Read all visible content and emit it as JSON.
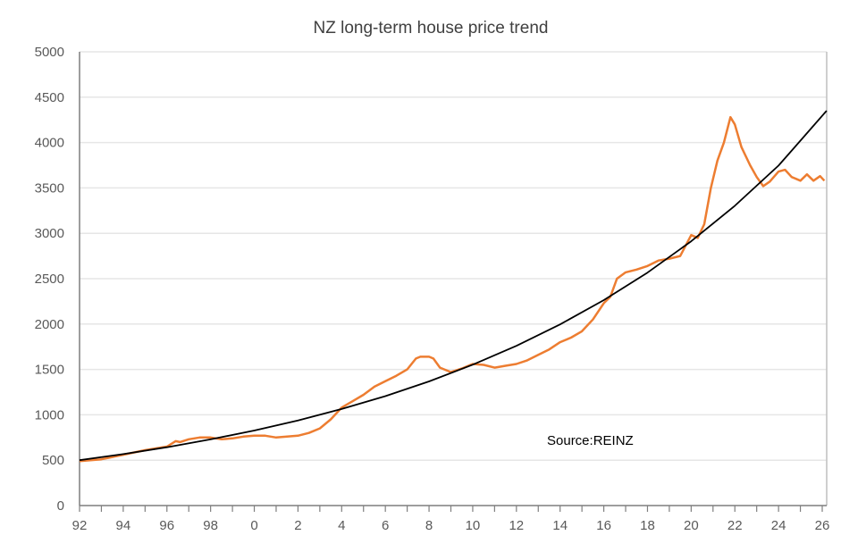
{
  "chart_data": {
    "type": "line",
    "title": "NZ long-term house price trend",
    "xlabel": "",
    "ylabel": "",
    "xlim": [
      1992,
      2026.2
    ],
    "ylim": [
      0,
      5000
    ],
    "grid": "horizontal",
    "annotation": "Source:REINZ",
    "y_ticks": [
      0,
      500,
      1000,
      1500,
      2000,
      2500,
      3000,
      3500,
      4000,
      4500,
      5000
    ],
    "x_ticks": [
      {
        "value": 1992,
        "label": "92"
      },
      {
        "value": 1994,
        "label": "94"
      },
      {
        "value": 1996,
        "label": "96"
      },
      {
        "value": 1998,
        "label": "98"
      },
      {
        "value": 2000,
        "label": "0"
      },
      {
        "value": 2002,
        "label": "2"
      },
      {
        "value": 2004,
        "label": "4"
      },
      {
        "value": 2006,
        "label": "6"
      },
      {
        "value": 2008,
        "label": "8"
      },
      {
        "value": 2010,
        "label": "10"
      },
      {
        "value": 2012,
        "label": "12"
      },
      {
        "value": 2014,
        "label": "14"
      },
      {
        "value": 2016,
        "label": "16"
      },
      {
        "value": 2018,
        "label": "18"
      },
      {
        "value": 2020,
        "label": "20"
      },
      {
        "value": 2022,
        "label": "22"
      },
      {
        "value": 2024,
        "label": "24"
      },
      {
        "value": 2026,
        "label": "26"
      }
    ],
    "colors": {
      "price": "#ED7D31",
      "trend": "#000000",
      "grid": "#E6E6E6",
      "axis": "#7F7F7F"
    },
    "series": [
      {
        "key": "price",
        "x": [
          1992.0,
          1993,
          1994,
          1995,
          1996,
          1996.4,
          1996.6,
          1997,
          1997.5,
          1998,
          1998.5,
          1999,
          1999.5,
          2000,
          2000.5,
          2001,
          2001.5,
          2002,
          2002.5,
          2003,
          2003.5,
          2004,
          2004.5,
          2005,
          2005.5,
          2006,
          2006.5,
          2007,
          2007.4,
          2007.6,
          2008,
          2008.2,
          2008.5,
          2009,
          2009.5,
          2010,
          2010.5,
          2011,
          2011.5,
          2012,
          2012.5,
          2013,
          2013.5,
          2014,
          2014.5,
          2015,
          2015.5,
          2016,
          2016.3,
          2016.6,
          2017,
          2017.5,
          2018,
          2018.5,
          2019,
          2019.5,
          2020,
          2020.3,
          2020.6,
          2020.9,
          2021.2,
          2021.5,
          2021.8,
          2022.0,
          2022.3,
          2022.7,
          2023.0,
          2023.3,
          2023.6,
          2024,
          2024.3,
          2024.6,
          2025,
          2025.3,
          2025.6,
          2025.9,
          2026.1
        ],
        "values": [
          490,
          510,
          560,
          610,
          650,
          710,
          700,
          730,
          750,
          750,
          730,
          740,
          760,
          770,
          770,
          750,
          760,
          770,
          800,
          850,
          950,
          1080,
          1150,
          1220,
          1310,
          1370,
          1430,
          1500,
          1620,
          1640,
          1640,
          1620,
          1520,
          1470,
          1510,
          1560,
          1550,
          1520,
          1540,
          1560,
          1600,
          1660,
          1720,
          1800,
          1850,
          1920,
          2050,
          2230,
          2300,
          2500,
          2570,
          2600,
          2640,
          2700,
          2720,
          2750,
          2980,
          2950,
          3100,
          3500,
          3800,
          4000,
          4280,
          4200,
          3950,
          3750,
          3620,
          3520,
          3570,
          3680,
          3700,
          3620,
          3580,
          3650,
          3580,
          3630,
          3580
        ]
      },
      {
        "key": "trend",
        "x": [
          1992,
          1994,
          1996,
          1998,
          2000,
          2002,
          2004,
          2006,
          2008,
          2010,
          2012,
          2014,
          2016,
          2018,
          2020,
          2022,
          2024,
          2026.2
        ],
        "values": [
          500,
          567,
          643,
          729,
          827,
          938,
          1064,
          1206,
          1368,
          1552,
          1760,
          1996,
          2264,
          2567,
          2912,
          3303,
          3746,
          4350
        ]
      }
    ]
  }
}
